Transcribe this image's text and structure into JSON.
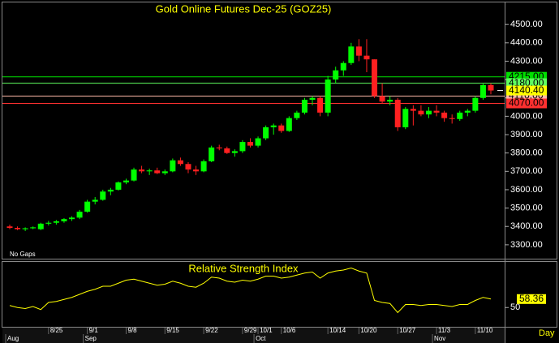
{
  "chart_data": [
    {
      "type": "candlestick",
      "title": "Gold Online Futures Dec-25 (GOZ25)",
      "note": "No Gaps",
      "period": "Day",
      "up_color": "#00ff00",
      "down_color": "#ff2020",
      "categories": [
        null,
        null,
        null,
        null,
        null,
        "8/25",
        null,
        null,
        null,
        null,
        "9/1",
        null,
        null,
        null,
        null,
        "9/8",
        null,
        null,
        null,
        null,
        "9/15",
        null,
        null,
        null,
        null,
        "9/22",
        null,
        null,
        null,
        null,
        "9/29",
        null,
        "10/1",
        null,
        null,
        "10/6",
        null,
        null,
        null,
        null,
        null,
        "10/14",
        null,
        null,
        null,
        "10/20",
        null,
        null,
        null,
        null,
        "10/27",
        null,
        null,
        null,
        null,
        "11/3",
        null,
        null,
        null,
        null,
        "11/10",
        null,
        null
      ],
      "months": [
        "Aug",
        null,
        null,
        null,
        null,
        null,
        null,
        null,
        null,
        null,
        "Sep",
        null,
        null,
        null,
        null,
        null,
        null,
        null,
        null,
        null,
        null,
        null,
        null,
        null,
        null,
        null,
        null,
        null,
        null,
        null,
        null,
        null,
        "Oct",
        null,
        null,
        null,
        null,
        null,
        null,
        null,
        null,
        null,
        null,
        null,
        null,
        null,
        null,
        null,
        null,
        null,
        null,
        null,
        null,
        null,
        null,
        "Nov",
        null,
        null,
        null,
        null,
        null,
        null,
        null
      ],
      "open": [
        3400,
        3392,
        3385,
        3390,
        3385,
        3415,
        3420,
        3428,
        3440,
        3448,
        3480,
        3535,
        3545,
        3590,
        3600,
        3640,
        3650,
        3710,
        3700,
        3705,
        3690,
        3700,
        3760,
        3740,
        3710,
        3700,
        3755,
        3830,
        3825,
        3800,
        3810,
        3860,
        3840,
        3880,
        3940,
        3950,
        3920,
        3990,
        4020,
        4090,
        4100,
        4020,
        4200,
        4250,
        4290,
        4380,
        4330,
        4310,
        4110,
        4080,
        4090,
        3940,
        4040,
        4030,
        4010,
        4030,
        4020,
        3990,
        3985,
        4020,
        4030,
        4100,
        4170
      ],
      "high": [
        3410,
        3400,
        3395,
        3400,
        3420,
        3430,
        3435,
        3445,
        3455,
        3490,
        3545,
        3560,
        3600,
        3610,
        3645,
        3660,
        3720,
        3730,
        3715,
        3720,
        3710,
        3770,
        3775,
        3750,
        3730,
        3765,
        3840,
        3845,
        3835,
        3820,
        3870,
        3880,
        3890,
        3950,
        3960,
        3960,
        4000,
        4030,
        4100,
        4110,
        4110,
        4220,
        4270,
        4300,
        4400,
        4420,
        4420,
        4310,
        4180,
        4110,
        4100,
        4050,
        4060,
        4060,
        4050,
        4060,
        4030,
        4010,
        4030,
        4040,
        4110,
        4180,
        4180
      ],
      "low": [
        3385,
        3380,
        3375,
        3385,
        3380,
        3405,
        3410,
        3420,
        3430,
        3440,
        3475,
        3520,
        3540,
        3570,
        3595,
        3630,
        3645,
        3690,
        3680,
        3685,
        3680,
        3695,
        3730,
        3690,
        3680,
        3695,
        3750,
        3815,
        3795,
        3780,
        3800,
        3830,
        3830,
        3870,
        3900,
        3910,
        3915,
        3980,
        4010,
        4060,
        4000,
        4000,
        4180,
        4220,
        4280,
        4300,
        4240,
        4100,
        4070,
        4060,
        3920,
        3930,
        3950,
        4000,
        3990,
        4000,
        3970,
        3960,
        3975,
        4000,
        4020,
        4090,
        4120
      ],
      "close": [
        3392,
        3385,
        3390,
        3395,
        3415,
        3420,
        3428,
        3440,
        3448,
        3480,
        3535,
        3545,
        3590,
        3600,
        3640,
        3650,
        3710,
        3700,
        3705,
        3690,
        3700,
        3760,
        3740,
        3710,
        3700,
        3755,
        3830,
        3825,
        3800,
        3810,
        3860,
        3840,
        3880,
        3940,
        3950,
        3920,
        3990,
        4020,
        4090,
        4100,
        4020,
        4200,
        4250,
        4290,
        4380,
        4330,
        4310,
        4110,
        4080,
        4090,
        3940,
        4040,
        4030,
        4010,
        4030,
        4020,
        3990,
        3985,
        4020,
        4030,
        4100,
        4170,
        4140.4
      ],
      "ylim": [
        3220,
        4620
      ],
      "yticks": [
        {
          "value": 3300,
          "label": "3300.00"
        },
        {
          "value": 3400,
          "label": "3400.00"
        },
        {
          "value": 3500,
          "label": "3500.00"
        },
        {
          "value": 3600,
          "label": "3600.00"
        },
        {
          "value": 3700,
          "label": "3700.00"
        },
        {
          "value": 3800,
          "label": "3800.00"
        },
        {
          "value": 3900,
          "label": "3900.00"
        },
        {
          "value": 4000,
          "label": "4000.00"
        },
        {
          "value": 4100,
          "label": "4100.00"
        },
        {
          "value": 4200,
          "label": "4200.00"
        },
        {
          "value": 4300,
          "label": "4300.00"
        },
        {
          "value": 4400,
          "label": "4400.00"
        },
        {
          "value": 4500,
          "label": "4500.00"
        }
      ],
      "levels": [
        {
          "value": 4215,
          "label": "4215.00",
          "color": "#00e000"
        },
        {
          "value": 4180,
          "label": "4180.00",
          "color": "#60ff60"
        },
        {
          "value": 4110,
          "label": "4110.00",
          "color": "#ffb8a8"
        },
        {
          "value": 4070,
          "label": "4070.00",
          "color": "#ff3030"
        }
      ],
      "last_price": {
        "value": 4140.4,
        "label": "4140.40",
        "color": "#ffff00"
      }
    },
    {
      "type": "line",
      "title": "Relative Strength Index",
      "color": "#ffff00",
      "values": [
        52,
        50,
        49,
        51,
        48,
        55,
        56,
        58,
        60,
        63,
        66,
        68,
        71,
        71,
        74,
        77,
        78,
        76,
        74,
        72,
        73,
        76,
        74,
        71,
        70,
        74,
        80,
        79,
        76,
        75,
        77,
        76,
        78,
        81,
        81,
        79,
        80,
        82,
        84,
        85,
        79,
        84,
        86,
        87,
        89,
        86,
        84,
        57,
        55,
        54,
        45,
        53,
        53,
        52,
        53,
        53,
        52,
        51,
        53,
        53,
        57,
        60,
        58.36
      ],
      "ylim": [
        31,
        95
      ],
      "yticks": [
        50
      ]
    }
  ]
}
